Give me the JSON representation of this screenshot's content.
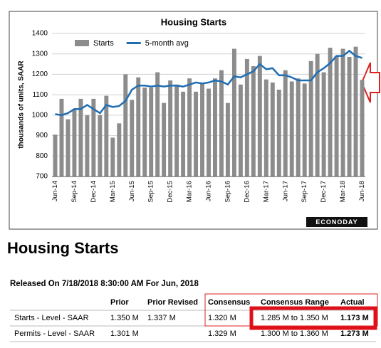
{
  "chart_data": {
    "type": "bar",
    "title": "Housing Starts",
    "y_label": "thousands of units, SAAR",
    "brand": "ECONODAY",
    "categories": [
      "Jun-14",
      null,
      null,
      "Sep-14",
      null,
      null,
      "Dec-14",
      null,
      null,
      "Mar-15",
      null,
      null,
      "Jun-15",
      null,
      null,
      "Sep-15",
      null,
      null,
      "Dec-15",
      null,
      null,
      "Mar-16",
      null,
      null,
      "Jun-16",
      null,
      null,
      "Sep-16",
      null,
      null,
      "Dec-16",
      null,
      null,
      "Mar-17",
      null,
      null,
      "Jun-17",
      null,
      null,
      "Sep-17",
      null,
      null,
      "Dec-17",
      null,
      null,
      "Mar-18",
      null,
      null,
      "Jun-18"
    ],
    "series": [
      {
        "name": "Starts",
        "color": "#8c8c8c",
        "type": "bar",
        "values": [
          905,
          1080,
          980,
          1030,
          1080,
          1000,
          1080,
          1000,
          1095,
          890,
          960,
          1200,
          1075,
          1185,
          1135,
          1135,
          1210,
          1060,
          1170,
          1150,
          1115,
          1180,
          1115,
          1160,
          1130,
          1180,
          1220,
          1060,
          1325,
          1150,
          1275,
          1240,
          1290,
          1175,
          1160,
          1125,
          1220,
          1165,
          1180,
          1155,
          1265,
          1300,
          1210,
          1330,
          1290,
          1325,
          1285,
          1335,
          1173
        ]
      },
      {
        "name": "5-month avg",
        "color": "#1f6eb4",
        "type": "line",
        "values": [
          1005,
          1000,
          1010,
          1030,
          1030,
          1050,
          1030,
          1010,
          1050,
          1040,
          1045,
          1070,
          1125,
          1145,
          1145,
          1140,
          1145,
          1140,
          1145,
          1145,
          1140,
          1150,
          1160,
          1155,
          1160,
          1170,
          1165,
          1150,
          1190,
          1185,
          1200,
          1215,
          1250,
          1225,
          1230,
          1195,
          1195,
          1185,
          1170,
          1170,
          1170,
          1210,
          1230,
          1255,
          1290,
          1290,
          1315,
          1290,
          1280
        ]
      }
    ],
    "ylim": [
      700,
      1400
    ],
    "yticks": [
      700,
      800,
      900,
      1000,
      1100,
      1200,
      1300,
      1400
    ],
    "grid": true
  },
  "page": {
    "heading": "Housing Starts",
    "release": "Released On 7/18/2018 8:30:00 AM For Jun, 2018",
    "table": {
      "columns": [
        "Prior",
        "Prior Revised",
        "Consensus",
        "Consensus Range",
        "Actual"
      ],
      "rows": [
        [
          "Starts - Level - SAAR",
          "1.350 M",
          "1.337 M",
          "1.320 M",
          "1.285 M to 1.350 M",
          "1.173 M"
        ],
        [
          "Permits - Level - SAAR",
          "1.301 M",
          "",
          "1.329 M",
          "1.300 M to 1.360 M",
          "1.273 M"
        ]
      ]
    }
  }
}
